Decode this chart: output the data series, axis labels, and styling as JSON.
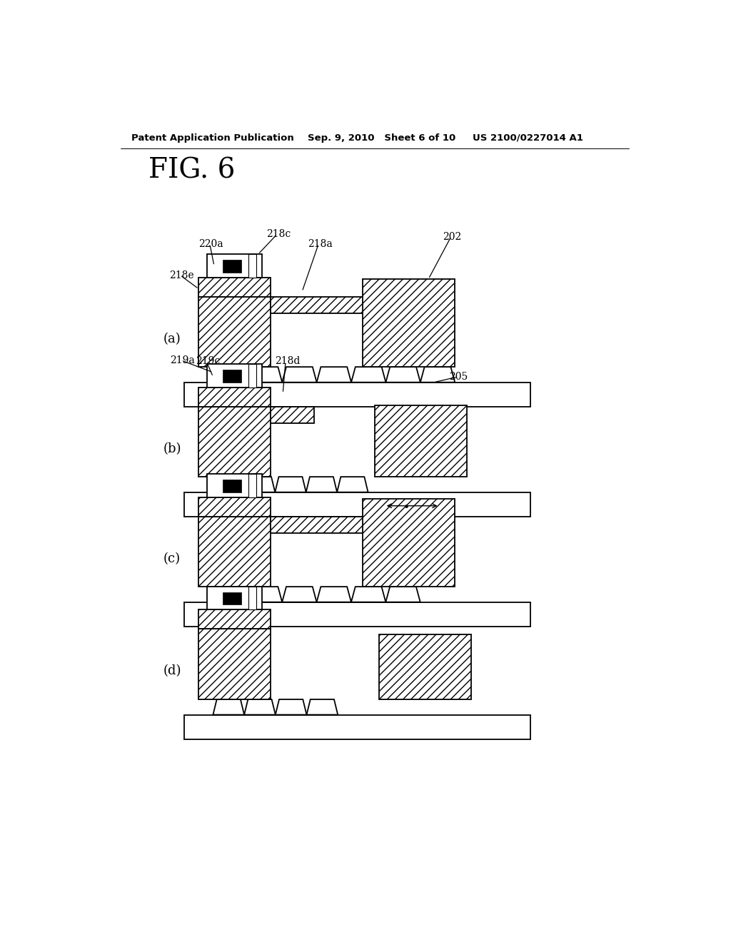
{
  "title": "FIG. 6",
  "header_left": "Patent Application Publication",
  "header_mid": "Sep. 9, 2010   Sheet 6 of 10",
  "header_right": "US 2100/0227014 A1",
  "bg_color": "#ffffff",
  "panels": [
    "(a)",
    "(b)",
    "(c)",
    "(d)"
  ]
}
